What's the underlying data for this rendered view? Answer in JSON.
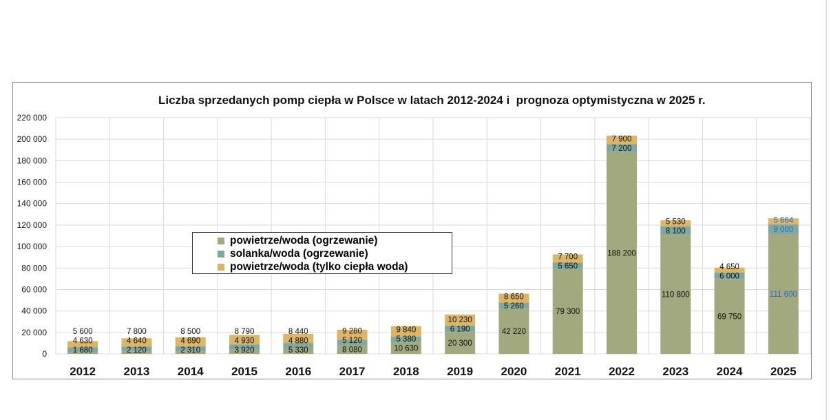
{
  "chart_data": {
    "type": "bar",
    "stacked": true,
    "title": "Liczba sprzedanych pomp ciepła w Polsce w latach 2012-2024 i  prognoza optymistyczna w 2025 r.",
    "categories": [
      "2012",
      "2013",
      "2014",
      "2015",
      "2016",
      "2017",
      "2018",
      "2019",
      "2020",
      "2021",
      "2022",
      "2023",
      "2024",
      "2025"
    ],
    "ylim": [
      0,
      220000
    ],
    "yticks": [
      "0",
      "20 000",
      "40 000",
      "60 000",
      "80 000",
      "100 000",
      "120 000",
      "140 000",
      "160 000",
      "180 000",
      "200 000",
      "220 000"
    ],
    "grid": true,
    "legend_position": "center-left",
    "series": [
      {
        "name": "powietrze/woda (ogrzewanie)",
        "color": "#a3a97f",
        "values": [
          1680,
          2120,
          2310,
          3920,
          5330,
          8080,
          10630,
          20300,
          42220,
          79300,
          188200,
          110800,
          69750,
          111600
        ],
        "labels": [
          "1 680",
          "2 120",
          "2 310",
          "3 920",
          "5 330",
          "8 080",
          "10 630",
          "20 300",
          "42 220",
          "79 300",
          "188 200",
          "110 800",
          "69 750",
          "111 600"
        ]
      },
      {
        "name": "solanka/woda (ogrzewanie)",
        "color": "#7fa8a0",
        "values": [
          4630,
          4640,
          4690,
          4930,
          4880,
          5120,
          5380,
          6190,
          5260,
          5650,
          7200,
          8100,
          6000,
          9000
        ],
        "labels": [
          "4 630",
          "4 640",
          "4 690",
          "4 930",
          "4 880",
          "5 120",
          "5 380",
          "6 190",
          "5 260",
          "5 650",
          "7 200",
          "8 100",
          "6 000",
          "9 000"
        ]
      },
      {
        "name": "powietrze/woda (tylko ciepła woda)",
        "color": "#ddb566",
        "values": [
          5600,
          7800,
          8500,
          8790,
          8440,
          9280,
          9840,
          10230,
          8650,
          7700,
          7900,
          5530,
          4650,
          5664
        ],
        "labels": [
          "5 600",
          "7 800",
          "8 500",
          "8 790",
          "8 440",
          "9 280",
          "9 840",
          "10 230",
          "8 650",
          "7 700",
          "7 900",
          "5 530",
          "4 650",
          "5 664"
        ]
      }
    ],
    "forecast_label_color": "#1f6fc0"
  }
}
